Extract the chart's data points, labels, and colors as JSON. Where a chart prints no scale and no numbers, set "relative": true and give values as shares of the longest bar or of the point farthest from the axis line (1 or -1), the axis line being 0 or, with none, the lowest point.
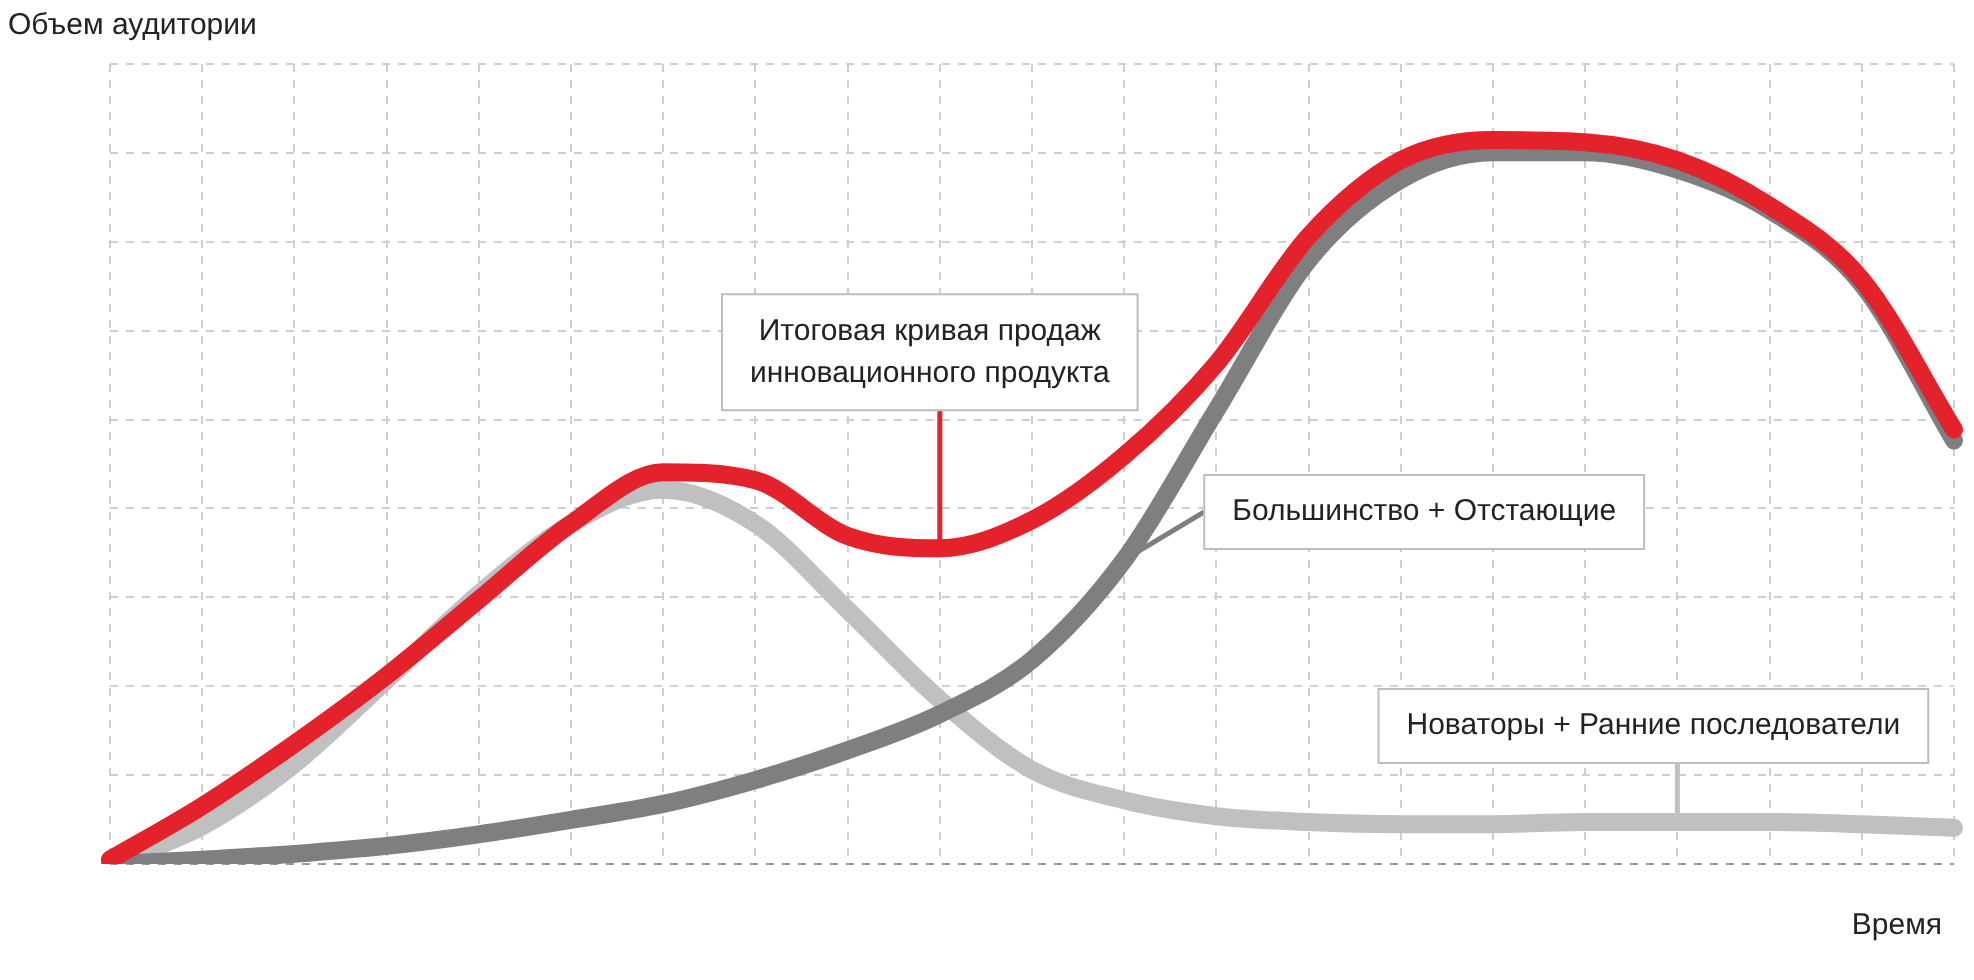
{
  "chart_data": {
    "type": "line",
    "relative": true,
    "grid": true,
    "legend": false,
    "marker": "none",
    "line_style": "solid",
    "xlabel": "Время",
    "ylabel": "Объем аудитории",
    "categories": [
      null,
      null,
      null,
      null,
      null,
      null,
      null,
      null,
      null,
      null,
      null,
      null,
      null,
      null,
      null,
      null,
      null,
      null,
      null,
      null,
      null
    ],
    "series": [
      {
        "name": "Итоговая кривая продаж инновационного продукта",
        "color": "#e3222b",
        "values": [
          0.006,
          0.08,
          0.166,
          0.26,
          0.365,
          0.47,
          0.541,
          0.53,
          0.453,
          0.436,
          0.475,
          0.564,
          0.691,
          0.867,
          0.972,
          1.0,
          0.997,
          0.972,
          0.909,
          0.807,
          0.6
        ]
      },
      {
        "name": "Большинство + Отстающие",
        "color": "#7f7f82",
        "values": [
          0,
          0.006,
          0.014,
          0.025,
          0.041,
          0.061,
          0.083,
          0.116,
          0.157,
          0.207,
          0.282,
          0.42,
          0.627,
          0.834,
          0.945,
          0.983,
          0.983,
          0.959,
          0.903,
          0.801,
          0.585
        ]
      },
      {
        "name": "Новаторы + Ранние последователи",
        "color": "#c0c0c0",
        "values": [
          0,
          0.052,
          0.138,
          0.254,
          0.373,
          0.47,
          0.517,
          0.47,
          0.351,
          0.227,
          0.13,
          0.088,
          0.066,
          0.058,
          0.055,
          0.055,
          0.058,
          0.058,
          0.058,
          0.055,
          0.05
        ]
      }
    ]
  }
}
